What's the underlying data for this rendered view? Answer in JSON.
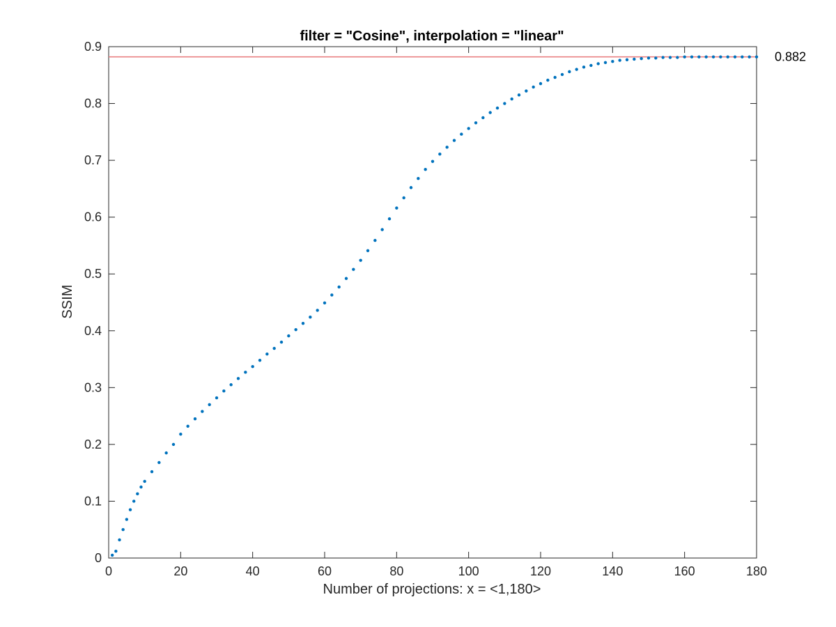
{
  "chart_data": {
    "type": "scatter",
    "title": "filter = \"Cosine\", interpolation = \"linear\"",
    "xlabel": "Number of projections: x = <1,180>",
    "ylabel": "SSIM",
    "xlim": [
      0,
      180
    ],
    "ylim": [
      0,
      0.9
    ],
    "xticks": [
      "0",
      "20",
      "40",
      "60",
      "80",
      "100",
      "120",
      "140",
      "160",
      "180"
    ],
    "yticks": [
      "0",
      "0.1",
      "0.2",
      "0.3",
      "0.4",
      "0.5",
      "0.6",
      "0.7",
      "0.8",
      "0.9"
    ],
    "grid": false,
    "series": [
      {
        "color": "#0072BD",
        "x": [
          1,
          2,
          3,
          4,
          5,
          6,
          7,
          8,
          9,
          10,
          12,
          14,
          16,
          18,
          20,
          22,
          24,
          26,
          28,
          30,
          32,
          34,
          36,
          38,
          40,
          42,
          44,
          46,
          48,
          50,
          52,
          54,
          56,
          58,
          60,
          62,
          64,
          66,
          68,
          70,
          72,
          74,
          76,
          78,
          80,
          82,
          84,
          86,
          88,
          90,
          92,
          94,
          96,
          98,
          100,
          102,
          104,
          106,
          108,
          110,
          112,
          114,
          116,
          118,
          120,
          122,
          124,
          126,
          128,
          130,
          132,
          134,
          136,
          138,
          140,
          142,
          144,
          146,
          148,
          150,
          152,
          154,
          156,
          158,
          160,
          162,
          164,
          166,
          168,
          170,
          172,
          174,
          176,
          178,
          180
        ],
        "y": [
          0.005,
          0.012,
          0.032,
          0.05,
          0.068,
          0.085,
          0.1,
          0.113,
          0.125,
          0.135,
          0.152,
          0.168,
          0.185,
          0.2,
          0.218,
          0.232,
          0.245,
          0.258,
          0.27,
          0.282,
          0.294,
          0.305,
          0.316,
          0.327,
          0.337,
          0.348,
          0.359,
          0.369,
          0.38,
          0.391,
          0.402,
          0.413,
          0.424,
          0.436,
          0.449,
          0.463,
          0.477,
          0.492,
          0.508,
          0.524,
          0.541,
          0.559,
          0.578,
          0.597,
          0.616,
          0.634,
          0.652,
          0.668,
          0.684,
          0.698,
          0.711,
          0.723,
          0.735,
          0.746,
          0.756,
          0.766,
          0.775,
          0.784,
          0.792,
          0.8,
          0.808,
          0.815,
          0.822,
          0.829,
          0.835,
          0.841,
          0.846,
          0.851,
          0.856,
          0.86,
          0.864,
          0.867,
          0.87,
          0.872,
          0.874,
          0.876,
          0.877,
          0.878,
          0.879,
          0.88,
          0.88,
          0.881,
          0.881,
          0.881,
          0.882,
          0.882,
          0.882,
          0.882,
          0.882,
          0.882,
          0.882,
          0.882,
          0.882,
          0.882,
          0.882
        ]
      }
    ],
    "reference_line": {
      "y": 0.882,
      "label": "0.882",
      "color": "#E8787A"
    }
  }
}
